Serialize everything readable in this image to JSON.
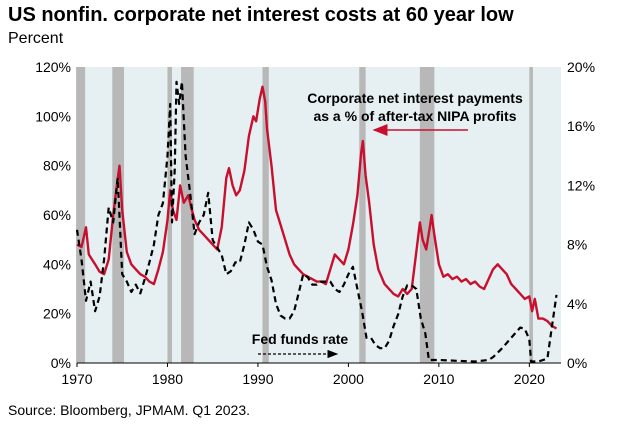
{
  "header": {
    "title": "US nonfin. corporate net interest costs at 60 year low",
    "subtitle": "Percent"
  },
  "footer": {
    "source": "Source: Bloomberg, JPMAM. Q1 2023."
  },
  "colors": {
    "plot_background": "#e6f0f3",
    "recession_band": "#b8b8b8",
    "corporate_line": "#c8102e",
    "fed_line": "#000000",
    "arrow": "#c8102e"
  },
  "chart_data": {
    "type": "line",
    "title": "US nonfin. corporate net interest costs at 60 year low",
    "subtitle": "Percent",
    "xlim": [
      1970,
      2023.5
    ],
    "x_ticks": [
      "1970",
      "1980",
      "1990",
      "2000",
      "2010",
      "2020"
    ],
    "x_tick_values": [
      1970,
      1980,
      1990,
      2000,
      2010,
      2020
    ],
    "left_axis": {
      "ylim": [
        0,
        120
      ],
      "ticks": [
        "0%",
        "20%",
        "40%",
        "60%",
        "80%",
        "100%",
        "120%"
      ],
      "tick_values": [
        0,
        20,
        40,
        60,
        80,
        100,
        120
      ]
    },
    "right_axis": {
      "ylim": [
        0,
        20
      ],
      "ticks": [
        "0%",
        "4%",
        "8%",
        "12%",
        "16%",
        "20%"
      ],
      "tick_values": [
        0,
        4,
        8,
        12,
        16,
        20
      ]
    },
    "grid": false,
    "recessions": [
      [
        1969.9,
        1970.9
      ],
      [
        1973.9,
        1975.2
      ],
      [
        1980.0,
        1980.5
      ],
      [
        1981.5,
        1982.9
      ],
      [
        1990.5,
        1991.2
      ],
      [
        2001.2,
        2001.9
      ],
      [
        2007.9,
        2009.5
      ],
      [
        2020.0,
        2020.4
      ]
    ],
    "annotations": {
      "corporate_label_line1": "Corporate net interest payments",
      "corporate_label_line2": "as a % of after-tax NIPA profits",
      "fed_label": "Fed funds rate"
    },
    "series": [
      {
        "name": "Corporate net interest payments as a % of after-tax NIPA profits",
        "axis": "left",
        "style": "solid",
        "points": [
          [
            1970.0,
            48
          ],
          [
            1970.5,
            47
          ],
          [
            1971.0,
            55
          ],
          [
            1971.3,
            44
          ],
          [
            1972.0,
            40
          ],
          [
            1972.5,
            37
          ],
          [
            1973.0,
            36
          ],
          [
            1973.5,
            42
          ],
          [
            1974.0,
            60
          ],
          [
            1974.4,
            72
          ],
          [
            1974.7,
            80
          ],
          [
            1975.0,
            62
          ],
          [
            1975.5,
            45
          ],
          [
            1976.0,
            40
          ],
          [
            1976.5,
            38
          ],
          [
            1977.0,
            36
          ],
          [
            1977.5,
            35
          ],
          [
            1978.0,
            33
          ],
          [
            1978.5,
            32
          ],
          [
            1979.0,
            38
          ],
          [
            1979.5,
            45
          ],
          [
            1980.0,
            58
          ],
          [
            1980.3,
            70
          ],
          [
            1980.6,
            62
          ],
          [
            1981.0,
            58
          ],
          [
            1981.4,
            72
          ],
          [
            1981.8,
            65
          ],
          [
            1982.3,
            68
          ],
          [
            1982.7,
            62
          ],
          [
            1983.0,
            58
          ],
          [
            1983.5,
            54
          ],
          [
            1984.0,
            52
          ],
          [
            1984.5,
            50
          ],
          [
            1985.0,
            48
          ],
          [
            1985.5,
            46
          ],
          [
            1986.0,
            55
          ],
          [
            1986.5,
            75
          ],
          [
            1986.8,
            79
          ],
          [
            1987.2,
            72
          ],
          [
            1987.6,
            68
          ],
          [
            1988.0,
            70
          ],
          [
            1988.5,
            78
          ],
          [
            1989.0,
            92
          ],
          [
            1989.5,
            100
          ],
          [
            1989.8,
            98
          ],
          [
            1990.2,
            107
          ],
          [
            1990.5,
            112
          ],
          [
            1990.8,
            106
          ],
          [
            1991.0,
            95
          ],
          [
            1991.5,
            80
          ],
          [
            1992.0,
            62
          ],
          [
            1992.5,
            56
          ],
          [
            1993.0,
            50
          ],
          [
            1993.5,
            44
          ],
          [
            1994.0,
            40
          ],
          [
            1994.5,
            38
          ],
          [
            1995.0,
            36
          ],
          [
            1995.5,
            35
          ],
          [
            1996.0,
            34
          ],
          [
            1996.5,
            33
          ],
          [
            1997.0,
            33
          ],
          [
            1997.5,
            32
          ],
          [
            1998.0,
            38
          ],
          [
            1998.5,
            44
          ],
          [
            1999.0,
            42
          ],
          [
            1999.5,
            40
          ],
          [
            2000.0,
            46
          ],
          [
            2000.5,
            56
          ],
          [
            2001.0,
            68
          ],
          [
            2001.4,
            85
          ],
          [
            2001.6,
            90
          ],
          [
            2001.9,
            76
          ],
          [
            2002.3,
            65
          ],
          [
            2002.8,
            48
          ],
          [
            2003.3,
            38
          ],
          [
            2004.0,
            32
          ],
          [
            2004.5,
            30
          ],
          [
            2005.0,
            28
          ],
          [
            2005.5,
            27
          ],
          [
            2006.0,
            30
          ],
          [
            2006.5,
            28
          ],
          [
            2007.0,
            30
          ],
          [
            2007.5,
            45
          ],
          [
            2007.9,
            57
          ],
          [
            2008.2,
            50
          ],
          [
            2008.6,
            46
          ],
          [
            2009.0,
            55
          ],
          [
            2009.2,
            60
          ],
          [
            2009.5,
            52
          ],
          [
            2010.0,
            40
          ],
          [
            2010.5,
            35
          ],
          [
            2011.0,
            36
          ],
          [
            2011.5,
            34
          ],
          [
            2012.0,
            35
          ],
          [
            2012.5,
            33
          ],
          [
            2013.0,
            34
          ],
          [
            2013.5,
            32
          ],
          [
            2014.0,
            33
          ],
          [
            2014.5,
            31
          ],
          [
            2015.0,
            30
          ],
          [
            2015.5,
            34
          ],
          [
            2016.0,
            38
          ],
          [
            2016.5,
            40
          ],
          [
            2017.0,
            38
          ],
          [
            2017.5,
            36
          ],
          [
            2018.0,
            32
          ],
          [
            2018.5,
            30
          ],
          [
            2019.0,
            28
          ],
          [
            2019.5,
            26
          ],
          [
            2020.0,
            27
          ],
          [
            2020.3,
            21
          ],
          [
            2020.6,
            26
          ],
          [
            2021.0,
            18
          ],
          [
            2021.5,
            18
          ],
          [
            2022.0,
            17
          ],
          [
            2022.5,
            15
          ],
          [
            2023.0,
            14
          ]
        ]
      },
      {
        "name": "Fed funds rate",
        "axis": "right",
        "style": "dashed",
        "points": [
          [
            1970.0,
            9.0
          ],
          [
            1970.5,
            7.0
          ],
          [
            1971.0,
            4.2
          ],
          [
            1971.5,
            5.5
          ],
          [
            1972.0,
            3.5
          ],
          [
            1972.5,
            4.5
          ],
          [
            1973.0,
            7.0
          ],
          [
            1973.5,
            10.5
          ],
          [
            1974.0,
            9.5
          ],
          [
            1974.5,
            12.5
          ],
          [
            1975.0,
            6.0
          ],
          [
            1975.5,
            5.5
          ],
          [
            1976.0,
            4.8
          ],
          [
            1976.5,
            5.3
          ],
          [
            1977.0,
            4.7
          ],
          [
            1977.5,
            5.7
          ],
          [
            1978.0,
            6.8
          ],
          [
            1978.5,
            8.0
          ],
          [
            1979.0,
            10.0
          ],
          [
            1979.5,
            10.8
          ],
          [
            1980.0,
            14.0
          ],
          [
            1980.3,
            17.5
          ],
          [
            1980.5,
            9.5
          ],
          [
            1980.8,
            13.0
          ],
          [
            1981.0,
            19.0
          ],
          [
            1981.3,
            17.5
          ],
          [
            1981.6,
            19.0
          ],
          [
            1982.0,
            14.0
          ],
          [
            1982.5,
            11.5
          ],
          [
            1983.0,
            8.7
          ],
          [
            1983.5,
            9.5
          ],
          [
            1984.0,
            10.0
          ],
          [
            1984.5,
            11.5
          ],
          [
            1985.0,
            8.3
          ],
          [
            1985.5,
            7.8
          ],
          [
            1986.0,
            7.3
          ],
          [
            1986.5,
            6.0
          ],
          [
            1987.0,
            6.2
          ],
          [
            1987.5,
            6.8
          ],
          [
            1988.0,
            6.8
          ],
          [
            1988.5,
            8.0
          ],
          [
            1989.0,
            9.5
          ],
          [
            1989.5,
            9.0
          ],
          [
            1990.0,
            8.2
          ],
          [
            1990.5,
            8.0
          ],
          [
            1991.0,
            6.5
          ],
          [
            1991.5,
            5.6
          ],
          [
            1992.0,
            4.0
          ],
          [
            1992.5,
            3.2
          ],
          [
            1993.0,
            3.0
          ],
          [
            1993.5,
            3.0
          ],
          [
            1994.0,
            3.5
          ],
          [
            1994.5,
            4.7
          ],
          [
            1995.0,
            6.0
          ],
          [
            1995.5,
            5.8
          ],
          [
            1996.0,
            5.3
          ],
          [
            1996.5,
            5.3
          ],
          [
            1997.0,
            5.5
          ],
          [
            1997.5,
            5.5
          ],
          [
            1998.0,
            5.5
          ],
          [
            1998.5,
            5.0
          ],
          [
            1999.0,
            4.8
          ],
          [
            1999.5,
            5.3
          ],
          [
            2000.0,
            6.0
          ],
          [
            2000.5,
            6.5
          ],
          [
            2001.0,
            5.0
          ],
          [
            2001.5,
            3.5
          ],
          [
            2002.0,
            1.7
          ],
          [
            2002.5,
            1.7
          ],
          [
            2003.0,
            1.2
          ],
          [
            2003.5,
            1.0
          ],
          [
            2004.0,
            1.0
          ],
          [
            2004.5,
            1.5
          ],
          [
            2005.0,
            2.5
          ],
          [
            2005.5,
            3.3
          ],
          [
            2006.0,
            4.5
          ],
          [
            2006.5,
            5.25
          ],
          [
            2007.0,
            5.25
          ],
          [
            2007.5,
            5.0
          ],
          [
            2008.0,
            3.0
          ],
          [
            2008.5,
            2.0
          ],
          [
            2008.9,
            0.2
          ],
          [
            2010.0,
            0.2
          ],
          [
            2012.0,
            0.15
          ],
          [
            2014.0,
            0.1
          ],
          [
            2015.5,
            0.2
          ],
          [
            2016.0,
            0.4
          ],
          [
            2017.0,
            1.0
          ],
          [
            2018.0,
            1.7
          ],
          [
            2019.0,
            2.4
          ],
          [
            2019.5,
            2.3
          ],
          [
            2020.0,
            1.6
          ],
          [
            2020.2,
            0.1
          ],
          [
            2021.0,
            0.1
          ],
          [
            2022.0,
            0.3
          ],
          [
            2022.5,
            2.5
          ],
          [
            2023.0,
            4.6
          ]
        ]
      }
    ]
  }
}
